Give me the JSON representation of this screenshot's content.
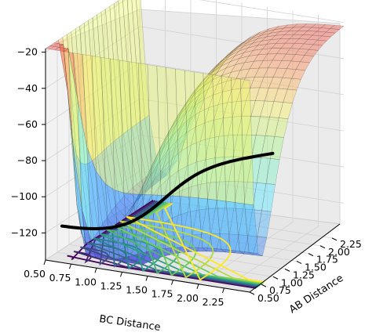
{
  "chart_data": {
    "type": "surface3d",
    "title": "",
    "xlabel": "BC Distance",
    "ylabel": "AB Distance",
    "zlabel": "",
    "x_ticks": [
      "0.50",
      "0.75",
      "1.00",
      "1.25",
      "1.50",
      "1.75",
      "2.00",
      "2.25"
    ],
    "y_ticks": [
      "0.50",
      "0.75",
      "1.00",
      "1.25",
      "1.50",
      "1.75",
      "2.00",
      "2.25"
    ],
    "z_ticks": [
      "−20",
      "−40",
      "−60",
      "−80",
      "−100",
      "−120"
    ],
    "x_range": [
      0.5,
      2.5
    ],
    "y_range": [
      0.5,
      2.5
    ],
    "z_range": [
      -135,
      -18
    ],
    "surface": "semi-transparent colormap surface (blue at -120 through cyan, green, yellow to red at -20)",
    "contour": "colored contour lines (dark purple to yellow) projected on the floor",
    "trajectory": "black path through the reaction valley",
    "grid": true
  }
}
